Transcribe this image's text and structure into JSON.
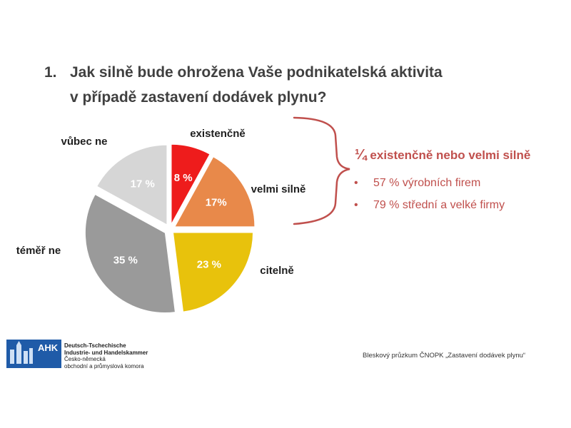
{
  "title": {
    "number": "1.",
    "line1": "Jak silně bude ohrožena Vaše podnikatelská aktivita",
    "line2": "v případě zastavení dodávek plynu?"
  },
  "chart_data": {
    "type": "pie",
    "title": "",
    "slices": [
      {
        "category": "existenčně",
        "value": 8,
        "label": "8 %",
        "color": "#ee1c1c"
      },
      {
        "category": "velmi silně",
        "value": 17,
        "label": "17%",
        "color": "#e8894a"
      },
      {
        "category": "citelně",
        "value": 23,
        "label": "23 %",
        "color": "#e8c20c"
      },
      {
        "category": "téměř ne",
        "value": 35,
        "label": "35 %",
        "color": "#9a9a9a"
      },
      {
        "category": "vůbec ne",
        "value": 17,
        "label": "17 %",
        "color": "#d6d6d6"
      }
    ]
  },
  "summary": {
    "fraction": "¼",
    "headline": "existenčně nebo velmi silně",
    "bullets": [
      "57 % výrobních firem",
      "79 % střední a velké firmy"
    ],
    "accent_color": "#c0504d"
  },
  "logo": {
    "abbr": "AHK",
    "lines": [
      "Deutsch-Tschechische",
      "Industrie- und Handelskammer",
      "Česko-německá",
      "obchodní a průmyslová komora"
    ]
  },
  "source": "Bleskový průzkum ČNOPK „Zastavení dodávek plynu“"
}
